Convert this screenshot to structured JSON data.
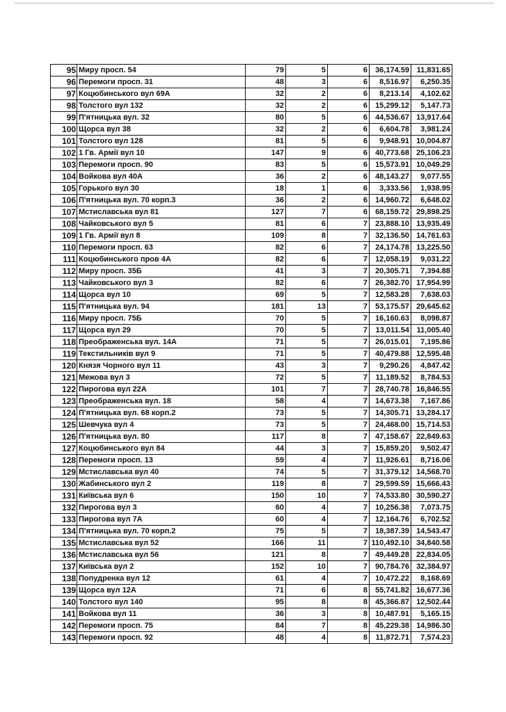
{
  "table": {
    "rows": [
      [
        "95",
        "Миру просп. 54",
        "79",
        "5",
        "6",
        "36,174.59",
        "11,831.65"
      ],
      [
        "96",
        "Перемоги просп. 31",
        "48",
        "3",
        "6",
        "8,516.97",
        "6,250.35"
      ],
      [
        "97",
        "Коцюбинського вул 69А",
        "32",
        "2",
        "6",
        "8,213.14",
        "4,102.62"
      ],
      [
        "98",
        "Толстого вул 132",
        "32",
        "2",
        "6",
        "15,299.12",
        "5,147.73"
      ],
      [
        "99",
        "П'ятницька вул. 32",
        "80",
        "5",
        "6",
        "44,536.67",
        "13,917.64"
      ],
      [
        "100",
        "Щорса вул 38",
        "32",
        "2",
        "6",
        "6,604.78",
        "3,981.24"
      ],
      [
        "101",
        "Толстого вул 128",
        "81",
        "5",
        "6",
        "9,948.91",
        "10,004.87"
      ],
      [
        "102",
        "1 Гв. Армії вул 10",
        "147",
        "9",
        "6",
        "40,773.68",
        "25,106.23"
      ],
      [
        "103",
        "Перемоги просп. 90",
        "83",
        "5",
        "6",
        "15,573.91",
        "10,049.29"
      ],
      [
        "104",
        "Войкова вул 40А",
        "36",
        "2",
        "6",
        "48,143.27",
        "9,077.55"
      ],
      [
        "105",
        "Горького вул 30",
        "18",
        "1",
        "6",
        "3,333.56",
        "1,938.95"
      ],
      [
        "106",
        "П'ятницька вул. 70 корп.3",
        "36",
        "2",
        "6",
        "14,960.72",
        "6,648.02"
      ],
      [
        "107",
        "Мстиславська вул 81",
        "127",
        "7",
        "6",
        "68,159.72",
        "29,898.25"
      ],
      [
        "108",
        "Чайковського вул 5",
        "81",
        "6",
        "7",
        "23,888.10",
        "13,935.49"
      ],
      [
        "109",
        "1 Гв. Армії вул 8",
        "109",
        "8",
        "7",
        "32,136.50",
        "14,761.63"
      ],
      [
        "110",
        "Перемоги просп. 63",
        "82",
        "6",
        "7",
        "24,174.78",
        "13,225.50"
      ],
      [
        "111",
        "Коцюбинського пров 4А",
        "82",
        "6",
        "7",
        "12,058.19",
        "9,031.22"
      ],
      [
        "112",
        "Миру просп. 35Б",
        "41",
        "3",
        "7",
        "20,305.71",
        "7,394.88"
      ],
      [
        "113",
        "Чайковського вул 3",
        "82",
        "6",
        "7",
        "26,382.70",
        "17,954.99"
      ],
      [
        "114",
        "Щорса вул 10",
        "69",
        "5",
        "7",
        "12,583.28",
        "7,638.03"
      ],
      [
        "115",
        "П'ятницька вул. 94",
        "181",
        "13",
        "7",
        "53,175.57",
        "29,645.62"
      ],
      [
        "116",
        "Миру просп. 75Б",
        "70",
        "5",
        "7",
        "16,160.63",
        "8,098.87"
      ],
      [
        "117",
        "Щорса вул 29",
        "70",
        "5",
        "7",
        "13,011.54",
        "11,005.40"
      ],
      [
        "118",
        "Преображенська вул. 14А",
        "71",
        "5",
        "7",
        "26,015.01",
        "7,195.86"
      ],
      [
        "119",
        "Текстильників вул 9",
        "71",
        "5",
        "7",
        "40,479.88",
        "12,595.48"
      ],
      [
        "120",
        "Князя Чорного вул 11",
        "43",
        "3",
        "7",
        "9,290.26",
        "4,847.42"
      ],
      [
        "121",
        "Межова вул 3",
        "72",
        "5",
        "7",
        "11,189.52",
        "8,784.53"
      ],
      [
        "122",
        "Пирогова вул 22А",
        "101",
        "7",
        "7",
        "28,740.78",
        "16,846.55"
      ],
      [
        "123",
        "Преображенська вул. 18",
        "58",
        "4",
        "7",
        "14,673.38",
        "7,167.86"
      ],
      [
        "124",
        "П'ятницька вул. 68 корп.2",
        "73",
        "5",
        "7",
        "14,305.71",
        "13,284.17"
      ],
      [
        "125",
        "Шевчука вул 4",
        "73",
        "5",
        "7",
        "24,468.00",
        "15,714.53"
      ],
      [
        "126",
        "П'ятницька вул. 80",
        "117",
        "8",
        "7",
        "47,158.67",
        "22,849.63"
      ],
      [
        "127",
        "Коцюбинського вул 84",
        "44",
        "3",
        "7",
        "15,859.20",
        "9,502.47"
      ],
      [
        "128",
        "Перемоги просп. 13",
        "59",
        "4",
        "7",
        "11,926.61",
        "8,716.06"
      ],
      [
        "129",
        "Мстиславська вул 40",
        "74",
        "5",
        "7",
        "31,379.12",
        "14,568.70"
      ],
      [
        "130",
        "Жабинського вул 2",
        "119",
        "8",
        "7",
        "29,599.59",
        "15,666.43"
      ],
      [
        "131",
        "Київська вул 6",
        "150",
        "10",
        "7",
        "74,533.80",
        "30,590.27"
      ],
      [
        "132",
        "Пирогова вул 3",
        "60",
        "4",
        "7",
        "10,256.38",
        "7,073.75"
      ],
      [
        "133",
        "Пирогова вул 7А",
        "60",
        "4",
        "7",
        "12,164.76",
        "6,702.52"
      ],
      [
        "134",
        "П'ятницька вул. 70 корп.2",
        "75",
        "5",
        "7",
        "18,387.39",
        "14,543.47"
      ],
      [
        "135",
        "Мстиславська вул 52",
        "166",
        "11",
        "7",
        "110,492.10",
        "34,840.58"
      ],
      [
        "136",
        "Мстиславська вул 56",
        "121",
        "8",
        "7",
        "49,449.28",
        "22,834.05"
      ],
      [
        "137",
        "Київська вул 2",
        "152",
        "10",
        "7",
        "90,784.76",
        "32,384.97"
      ],
      [
        "138",
        "Попудренка вул 12",
        "61",
        "4",
        "7",
        "10,472.22",
        "8,168.69"
      ],
      [
        "139",
        "Щорса вул 12А",
        "71",
        "6",
        "8",
        "55,741.82",
        "16,677.36"
      ],
      [
        "140",
        "Толстого вул 140",
        "95",
        "8",
        "8",
        "45,366.87",
        "12,502.44"
      ],
      [
        "141",
        "Войкова вул 11",
        "36",
        "3",
        "8",
        "10,487.91",
        "5,165.15"
      ],
      [
        "142",
        "Перемоги просп. 75",
        "84",
        "7",
        "8",
        "45,229.38",
        "14,986.30"
      ],
      [
        "143",
        "Перемоги просп. 92",
        "48",
        "4",
        "8",
        "11,872.71",
        "7,574.23"
      ]
    ]
  }
}
